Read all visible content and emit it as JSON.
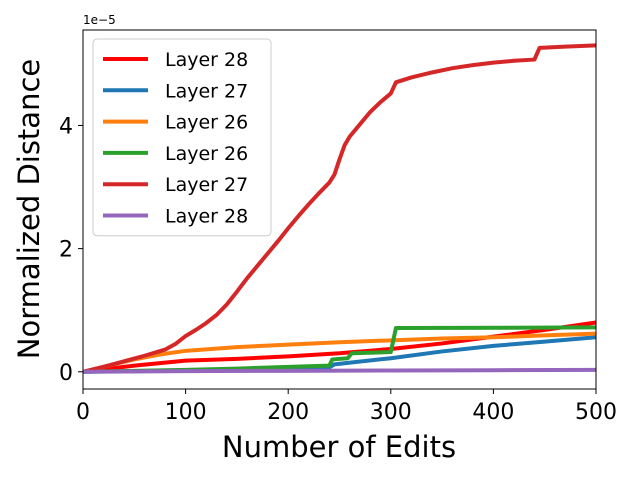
{
  "chart_data": {
    "type": "line",
    "title": "",
    "xlabel": "Number of Edits",
    "ylabel": "Normalized Distance",
    "y_offset_label": "1e−5",
    "xlim": [
      0,
      500
    ],
    "ylim": [
      -0.28,
      5.55
    ],
    "x_ticks": [
      0,
      100,
      200,
      300,
      400,
      500
    ],
    "y_ticks": [
      0,
      2,
      4
    ],
    "grid": false,
    "legend_position": "upper-left",
    "series": [
      {
        "name": "Layer 28",
        "color": "#ff0000",
        "points": [
          [
            0,
            0
          ],
          [
            50,
            0.1
          ],
          [
            100,
            0.18
          ],
          [
            150,
            0.21
          ],
          [
            200,
            0.25
          ],
          [
            250,
            0.3
          ],
          [
            300,
            0.37
          ],
          [
            350,
            0.46
          ],
          [
            400,
            0.57
          ],
          [
            450,
            0.68
          ],
          [
            500,
            0.8
          ]
        ]
      },
      {
        "name": "Layer 27",
        "color": "#1f77b4",
        "points": [
          [
            0,
            0
          ],
          [
            100,
            0.02
          ],
          [
            200,
            0.05
          ],
          [
            240,
            0.07
          ],
          [
            245,
            0.12
          ],
          [
            300,
            0.22
          ],
          [
            350,
            0.33
          ],
          [
            400,
            0.42
          ],
          [
            450,
            0.49
          ],
          [
            500,
            0.56
          ]
        ]
      },
      {
        "name": "Layer 26",
        "color": "#ff7f0e",
        "points": [
          [
            0,
            0
          ],
          [
            25,
            0.1
          ],
          [
            50,
            0.2
          ],
          [
            75,
            0.28
          ],
          [
            100,
            0.34
          ],
          [
            150,
            0.4
          ],
          [
            200,
            0.44
          ],
          [
            250,
            0.48
          ],
          [
            300,
            0.51
          ],
          [
            350,
            0.54
          ],
          [
            400,
            0.56
          ],
          [
            450,
            0.59
          ],
          [
            500,
            0.62
          ]
        ]
      },
      {
        "name": "Layer 26",
        "color": "#2ca02c",
        "points": [
          [
            0,
            0
          ],
          [
            100,
            0.03
          ],
          [
            150,
            0.05
          ],
          [
            200,
            0.08
          ],
          [
            240,
            0.1
          ],
          [
            243,
            0.2
          ],
          [
            258,
            0.22
          ],
          [
            262,
            0.3
          ],
          [
            300,
            0.32
          ],
          [
            305,
            0.71
          ],
          [
            500,
            0.72
          ]
        ]
      },
      {
        "name": "Layer 27",
        "color": "#d62728",
        "points": [
          [
            0,
            0
          ],
          [
            20,
            0.08
          ],
          [
            40,
            0.17
          ],
          [
            60,
            0.26
          ],
          [
            80,
            0.36
          ],
          [
            90,
            0.45
          ],
          [
            100,
            0.58
          ],
          [
            110,
            0.68
          ],
          [
            120,
            0.79
          ],
          [
            130,
            0.92
          ],
          [
            140,
            1.09
          ],
          [
            150,
            1.3
          ],
          [
            160,
            1.52
          ],
          [
            170,
            1.72
          ],
          [
            180,
            1.92
          ],
          [
            190,
            2.12
          ],
          [
            200,
            2.33
          ],
          [
            210,
            2.53
          ],
          [
            220,
            2.72
          ],
          [
            230,
            2.9
          ],
          [
            240,
            3.07
          ],
          [
            245,
            3.2
          ],
          [
            250,
            3.45
          ],
          [
            255,
            3.68
          ],
          [
            260,
            3.82
          ],
          [
            270,
            4.02
          ],
          [
            280,
            4.22
          ],
          [
            290,
            4.38
          ],
          [
            300,
            4.52
          ],
          [
            305,
            4.7
          ],
          [
            320,
            4.78
          ],
          [
            340,
            4.86
          ],
          [
            360,
            4.93
          ],
          [
            380,
            4.98
          ],
          [
            400,
            5.02
          ],
          [
            420,
            5.05
          ],
          [
            440,
            5.07
          ],
          [
            445,
            5.26
          ],
          [
            470,
            5.28
          ],
          [
            500,
            5.3
          ]
        ]
      },
      {
        "name": "Layer 28",
        "color": "#9467bd",
        "points": [
          [
            0,
            0
          ],
          [
            100,
            0.01
          ],
          [
            200,
            0.015
          ],
          [
            300,
            0.02
          ],
          [
            400,
            0.025
          ],
          [
            500,
            0.03
          ]
        ]
      }
    ]
  }
}
